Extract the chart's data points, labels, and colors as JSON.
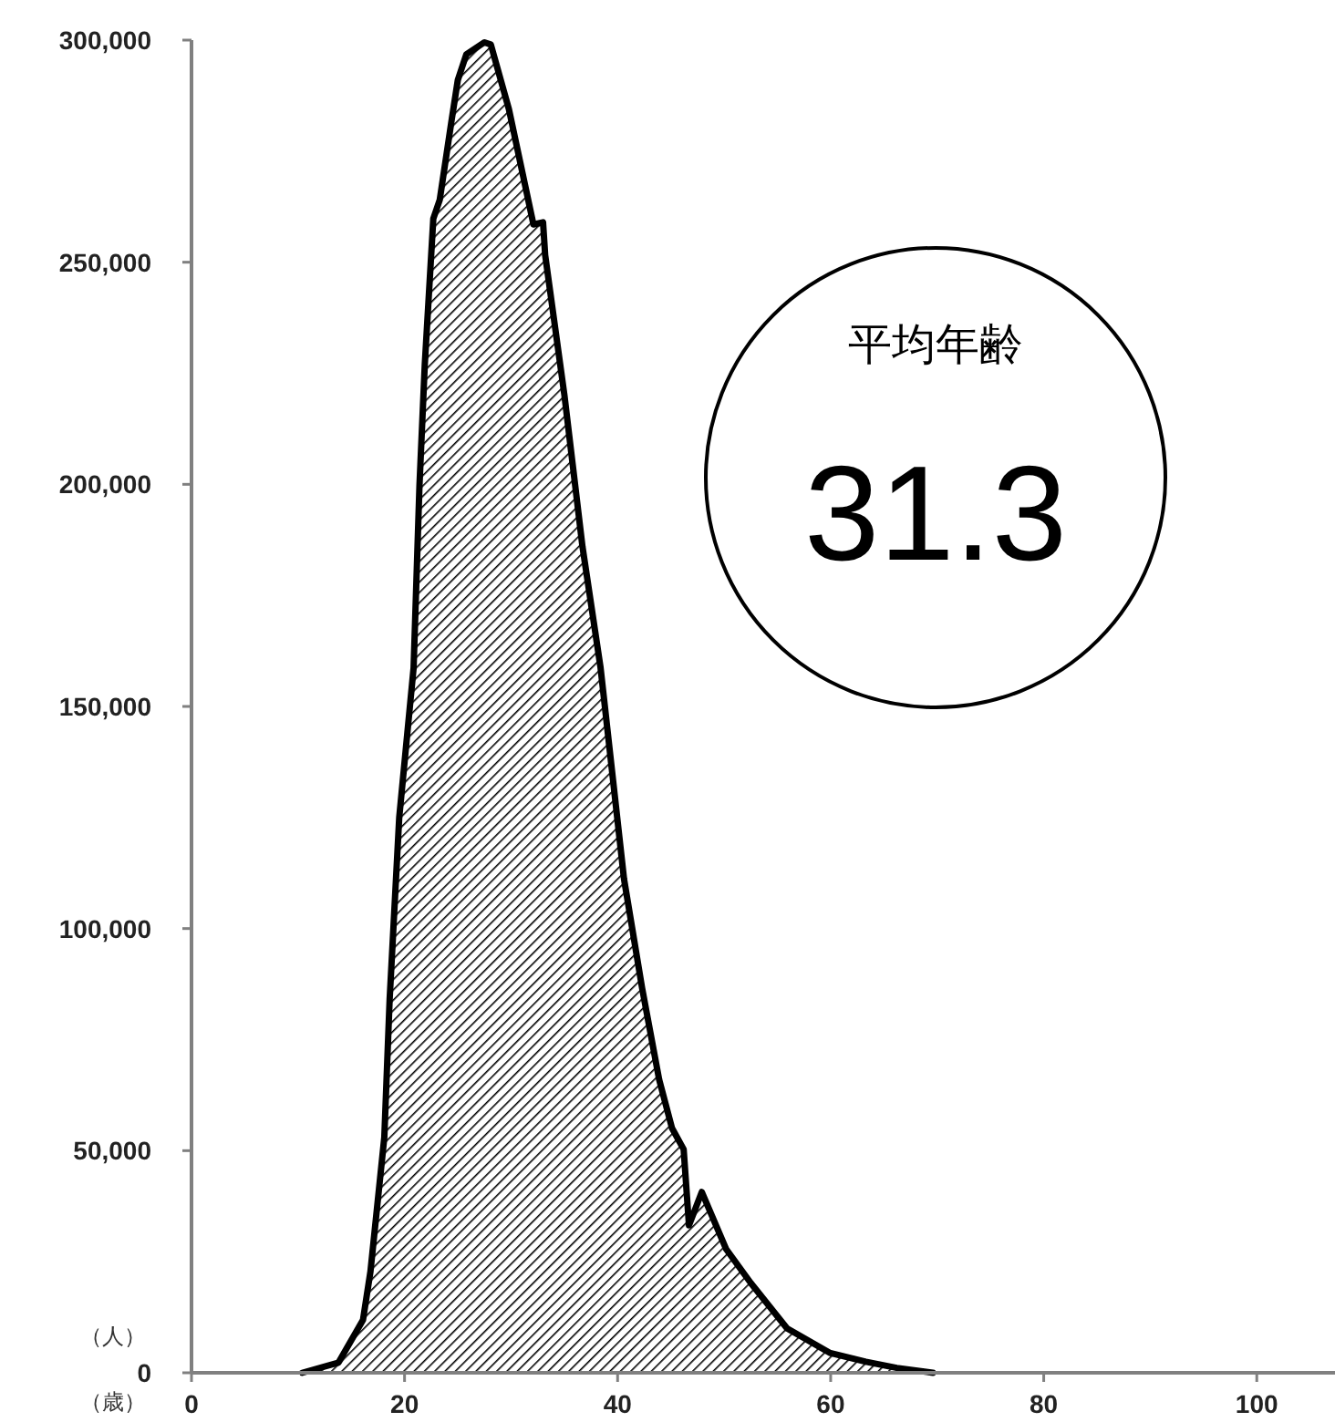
{
  "chart_data": {
    "type": "area",
    "xlabel": "（歳）",
    "ylabel": "（人）",
    "annotations": [
      "平均年齢",
      "31.3"
    ],
    "xlim": [
      0,
      107
    ],
    "ylim": [
      0,
      300000
    ],
    "xticks": [
      0,
      20,
      40,
      60,
      80,
      100
    ],
    "yticks": [
      0,
      {
        "value": 50000,
        "label": "50,000"
      },
      {
        "value": 100000,
        "label": "100,000"
      },
      {
        "value": 150000,
        "label": "150,000"
      },
      {
        "value": 200000,
        "label": "200,000"
      },
      {
        "value": 250000,
        "label": "250,000"
      },
      {
        "value": 300000,
        "label": "300,000"
      }
    ],
    "grid": false,
    "series": [
      {
        "color": "#000000",
        "x": [
          10.4,
          13.8,
          16.1,
          16.8,
          18.1,
          18.6,
          19.5,
          20.85,
          21.4,
          21.9,
          22.7,
          23.3,
          24.4,
          25.0,
          25.8,
          27.5,
          28.1,
          29.8,
          32.1,
          33.0,
          33.2,
          35.0,
          36.7,
          38.4,
          40.6,
          42.3,
          43.9,
          45.1,
          46.2,
          46.7,
          47.9,
          50.2,
          52.5,
          55.9,
          59.9,
          63.3,
          66.2,
          69.6
        ],
        "values": [
          0,
          2300,
          11900,
          22800,
          53000,
          84000,
          125000,
          158700,
          199700,
          227000,
          259800,
          264000,
          281700,
          291000,
          296800,
          299500,
          299000,
          284400,
          258500,
          259000,
          251600,
          220200,
          186000,
          158700,
          111200,
          86600,
          66000,
          55100,
          50300,
          33200,
          40700,
          27800,
          20200,
          10000,
          4500,
          2500,
          1100,
          0
        ]
      }
    ]
  }
}
